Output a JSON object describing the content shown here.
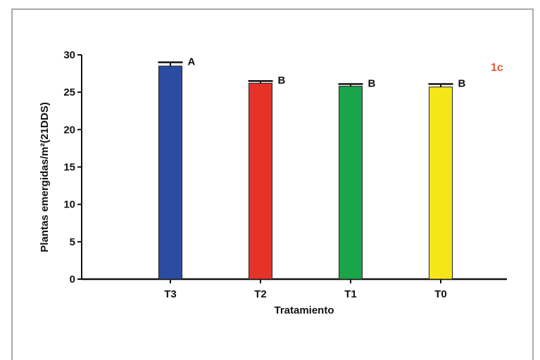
{
  "chart_data": {
    "type": "bar",
    "categories": [
      "T3",
      "T2",
      "T1",
      "T0"
    ],
    "values": [
      28.5,
      26.2,
      25.8,
      25.7
    ],
    "errors": [
      0.5,
      0.3,
      0.3,
      0.4
    ],
    "significance": [
      "A",
      "B",
      "B",
      "B"
    ],
    "colors": [
      "#2b4ca0",
      "#e5332a",
      "#1aa54a",
      "#f5e61a"
    ],
    "xlabel": "Tratamiento",
    "ylabel": "Plantas emergidas/m²(21DDS)",
    "ylim": [
      0,
      30
    ],
    "yticks": [
      0,
      5,
      10,
      15,
      20,
      25,
      30
    ],
    "panel_label": "1c",
    "panel_label_color": "#e05a3a",
    "grid": false
  }
}
